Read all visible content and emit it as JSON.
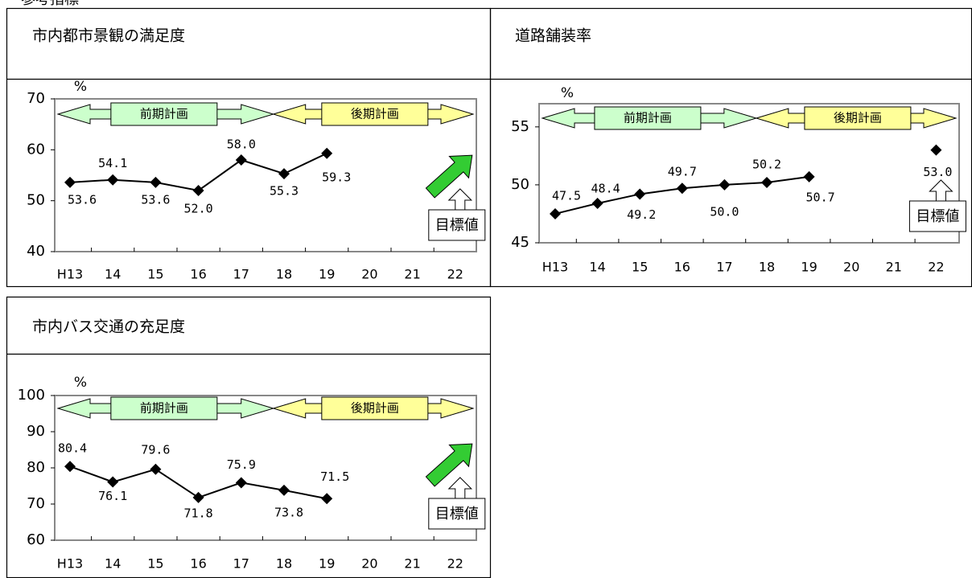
{
  "header": {
    "title": "参考指標"
  },
  "chart_data": [
    {
      "type": "line",
      "title": "市内都市景観の満足度",
      "y_unit": "%",
      "categories": [
        "H13",
        "14",
        "15",
        "16",
        "17",
        "18",
        "19",
        "20",
        "21",
        "22"
      ],
      "values": [
        53.6,
        54.1,
        53.6,
        52.0,
        58.0,
        55.3,
        59.3,
        null,
        null,
        null
      ],
      "value_labels": [
        "53.6",
        "54.1",
        "53.6",
        "52.0",
        "58.0",
        "55.3",
        "59.3",
        null,
        null,
        null
      ],
      "color": "#000000",
      "ylim": [
        40,
        70
      ],
      "yticks": [
        40,
        50,
        60,
        70
      ],
      "period_labels": [
        "前期計画",
        "後期計画"
      ],
      "target_label": "目標値"
    },
    {
      "type": "line",
      "title": "道路舗装率",
      "y_unit": "%",
      "categories": [
        "H13",
        "14",
        "15",
        "16",
        "17",
        "18",
        "19",
        "20",
        "21",
        "22"
      ],
      "values": [
        47.5,
        48.4,
        49.2,
        49.7,
        50.0,
        50.2,
        50.7,
        null,
        null,
        null
      ],
      "value_labels": [
        "47.5",
        "48.4",
        "49.2",
        "49.7",
        "50.0",
        "50.2",
        "50.7",
        null,
        null,
        null
      ],
      "target_values": [
        null,
        null,
        null,
        null,
        null,
        null,
        null,
        null,
        null,
        53.0
      ],
      "target_value_labels": [
        null,
        null,
        null,
        null,
        null,
        null,
        null,
        null,
        null,
        "53.0"
      ],
      "color": "#000000",
      "ylim": [
        45,
        57
      ],
      "yticks": [
        45,
        50,
        55
      ],
      "period_labels": [
        "前期計画",
        "後期計画"
      ],
      "target_label": "目標値"
    },
    {
      "type": "line",
      "title": "市内バス交通の充足度",
      "y_unit": "%",
      "categories": [
        "H13",
        "14",
        "15",
        "16",
        "17",
        "18",
        "19",
        "20",
        "21",
        "22"
      ],
      "values": [
        80.4,
        76.1,
        79.6,
        71.8,
        75.9,
        73.8,
        71.5,
        null,
        null,
        null
      ],
      "value_labels": [
        "80.4",
        "76.1",
        "79.6",
        "71.8",
        "75.9",
        "73.8",
        "71.5",
        null,
        null,
        null
      ],
      "color": "#000000",
      "ylim": [
        60,
        100
      ],
      "yticks": [
        60,
        70,
        80,
        90,
        100
      ],
      "period_labels": [
        "前期計画",
        "後期計画"
      ],
      "target_label": "目標値"
    }
  ]
}
